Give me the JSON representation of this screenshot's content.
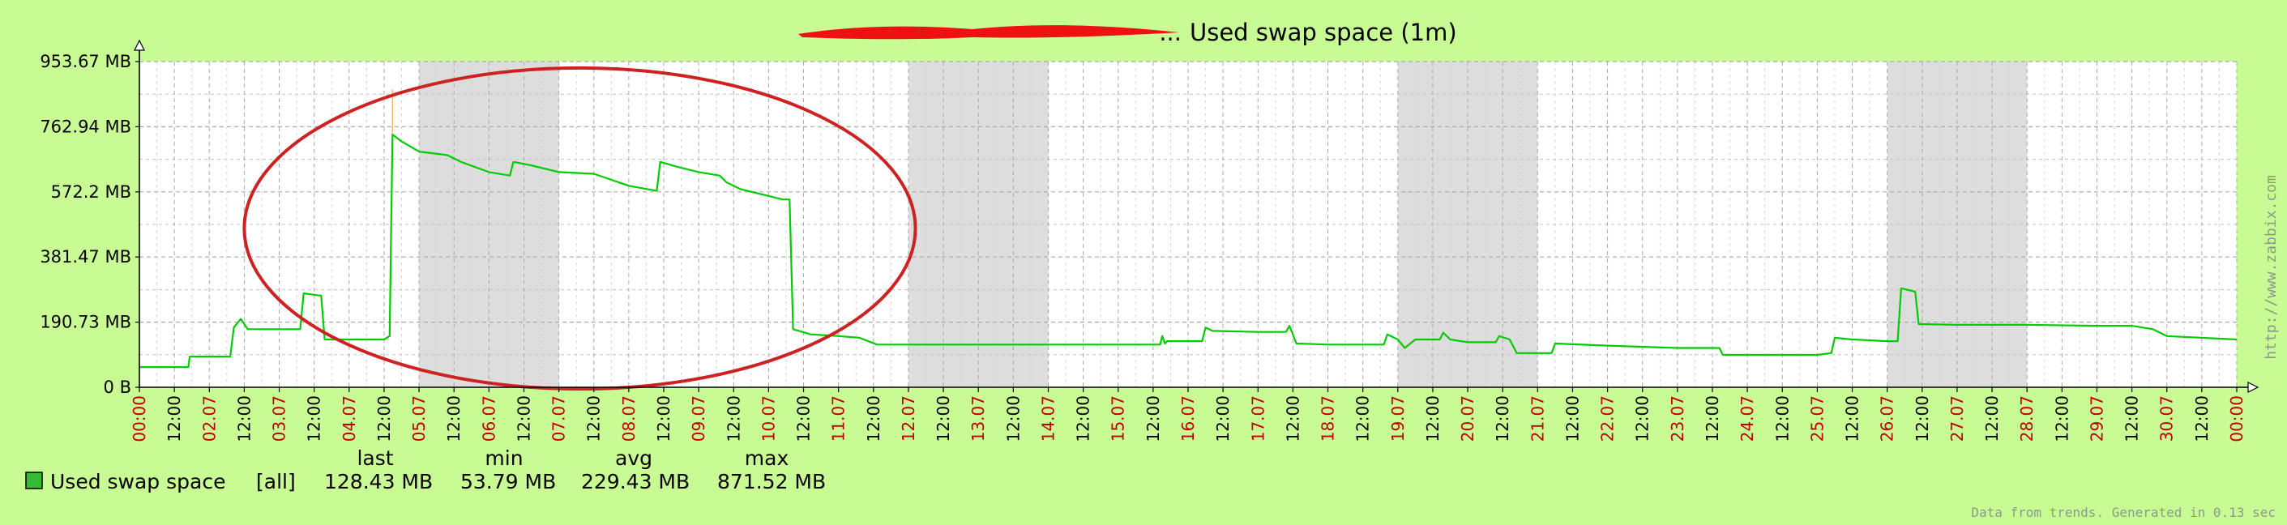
{
  "chart_data": {
    "type": "line",
    "title": "Used swap space  (1m)",
    "title_prefix": "...",
    "y_unit": "MB",
    "ylim": [
      0,
      953.67
    ],
    "y_ticks": [
      {
        "value": 0,
        "label": "0 B"
      },
      {
        "value": 190.73,
        "label": "190.73 MB"
      },
      {
        "value": 381.47,
        "label": "381.47 MB"
      },
      {
        "value": 572.2,
        "label": "572.2 MB"
      },
      {
        "value": 762.94,
        "label": "762.94 MB"
      },
      {
        "value": 953.67,
        "label": "953.67 MB"
      }
    ],
    "x_domain_days": [
      0,
      30
    ],
    "x_ticks": [
      {
        "day": 0,
        "label": "00:00",
        "major": true
      },
      {
        "day": 0.5,
        "label": "12:00",
        "major": false
      },
      {
        "day": 1,
        "label": "02.07",
        "major": true
      },
      {
        "day": 1.5,
        "label": "12:00",
        "major": false
      },
      {
        "day": 2,
        "label": "03.07",
        "major": true
      },
      {
        "day": 2.5,
        "label": "12:00",
        "major": false
      },
      {
        "day": 3,
        "label": "04.07",
        "major": true
      },
      {
        "day": 3.5,
        "label": "12:00",
        "major": false
      },
      {
        "day": 4,
        "label": "05.07",
        "major": true
      },
      {
        "day": 4.5,
        "label": "12:00",
        "major": false
      },
      {
        "day": 5,
        "label": "06.07",
        "major": true
      },
      {
        "day": 5.5,
        "label": "12:00",
        "major": false
      },
      {
        "day": 6,
        "label": "07.07",
        "major": true
      },
      {
        "day": 6.5,
        "label": "12:00",
        "major": false
      },
      {
        "day": 7,
        "label": "08.07",
        "major": true
      },
      {
        "day": 7.5,
        "label": "12:00",
        "major": false
      },
      {
        "day": 8,
        "label": "09.07",
        "major": true
      },
      {
        "day": 8.5,
        "label": "12:00",
        "major": false
      },
      {
        "day": 9,
        "label": "10.07",
        "major": true
      },
      {
        "day": 9.5,
        "label": "12:00",
        "major": false
      },
      {
        "day": 10,
        "label": "11.07",
        "major": true
      },
      {
        "day": 10.5,
        "label": "12:00",
        "major": false
      },
      {
        "day": 11,
        "label": "12.07",
        "major": true
      },
      {
        "day": 11.5,
        "label": "12:00",
        "major": false
      },
      {
        "day": 12,
        "label": "13.07",
        "major": true
      },
      {
        "day": 12.5,
        "label": "12:00",
        "major": false
      },
      {
        "day": 13,
        "label": "14.07",
        "major": true
      },
      {
        "day": 13.5,
        "label": "12:00",
        "major": false
      },
      {
        "day": 14,
        "label": "15.07",
        "major": true
      },
      {
        "day": 14.5,
        "label": "12:00",
        "major": false
      },
      {
        "day": 15,
        "label": "16.07",
        "major": true
      },
      {
        "day": 15.5,
        "label": "12:00",
        "major": false
      },
      {
        "day": 16,
        "label": "17.07",
        "major": true
      },
      {
        "day": 16.5,
        "label": "12:00",
        "major": false
      },
      {
        "day": 17,
        "label": "18.07",
        "major": true
      },
      {
        "day": 17.5,
        "label": "12:00",
        "major": false
      },
      {
        "day": 18,
        "label": "19.07",
        "major": true
      },
      {
        "day": 18.5,
        "label": "12:00",
        "major": false
      },
      {
        "day": 19,
        "label": "20.07",
        "major": true
      },
      {
        "day": 19.5,
        "label": "12:00",
        "major": false
      },
      {
        "day": 20,
        "label": "21.07",
        "major": true
      },
      {
        "day": 20.5,
        "label": "12:00",
        "major": false
      },
      {
        "day": 21,
        "label": "22.07",
        "major": true
      },
      {
        "day": 21.5,
        "label": "12:00",
        "major": false
      },
      {
        "day": 22,
        "label": "23.07",
        "major": true
      },
      {
        "day": 22.5,
        "label": "12:00",
        "major": false
      },
      {
        "day": 23,
        "label": "24.07",
        "major": true
      },
      {
        "day": 23.5,
        "label": "12:00",
        "major": false
      },
      {
        "day": 24,
        "label": "25.07",
        "major": true
      },
      {
        "day": 24.5,
        "label": "12:00",
        "major": false
      },
      {
        "day": 25,
        "label": "26.07",
        "major": true
      },
      {
        "day": 25.5,
        "label": "12:00",
        "major": false
      },
      {
        "day": 26,
        "label": "27.07",
        "major": true
      },
      {
        "day": 26.5,
        "label": "12:00",
        "major": false
      },
      {
        "day": 27,
        "label": "28.07",
        "major": true
      },
      {
        "day": 27.5,
        "label": "12:00",
        "major": false
      },
      {
        "day": 28,
        "label": "29.07",
        "major": true
      },
      {
        "day": 28.5,
        "label": "12:00",
        "major": false
      },
      {
        "day": 29,
        "label": "30.07",
        "major": true
      },
      {
        "day": 29.5,
        "label": "12:00",
        "major": false
      },
      {
        "day": 30,
        "label": "00:00",
        "major": true
      }
    ],
    "weekend_ranges_days": [
      [
        4,
        6
      ],
      [
        11,
        13
      ],
      [
        18,
        20
      ],
      [
        25,
        27
      ]
    ],
    "series": [
      {
        "name": "Used swap space",
        "scope": "[all]",
        "color": "#00cc00",
        "points": [
          [
            0,
            59
          ],
          [
            0.7,
            59
          ],
          [
            0.72,
            90
          ],
          [
            1.3,
            90
          ],
          [
            1.35,
            175
          ],
          [
            1.45,
            200
          ],
          [
            1.55,
            170
          ],
          [
            2.3,
            170
          ],
          [
            2.35,
            275
          ],
          [
            2.6,
            268
          ],
          [
            2.65,
            140
          ],
          [
            3.5,
            140
          ],
          [
            3.58,
            150
          ],
          [
            3.62,
            740
          ],
          [
            3.75,
            720
          ],
          [
            4,
            690
          ],
          [
            4.4,
            680
          ],
          [
            4.6,
            660
          ],
          [
            5,
            630
          ],
          [
            5.3,
            620
          ],
          [
            5.35,
            660
          ],
          [
            5.6,
            650
          ],
          [
            6,
            630
          ],
          [
            6.5,
            625
          ],
          [
            7,
            590
          ],
          [
            7.4,
            575
          ],
          [
            7.45,
            660
          ],
          [
            7.7,
            645
          ],
          [
            8,
            630
          ],
          [
            8.3,
            620
          ],
          [
            8.4,
            600
          ],
          [
            8.6,
            580
          ],
          [
            9,
            560
          ],
          [
            9.2,
            550
          ],
          [
            9.3,
            550
          ],
          [
            9.35,
            170
          ],
          [
            9.6,
            155
          ],
          [
            10,
            150
          ],
          [
            10.3,
            145
          ],
          [
            10.55,
            125
          ],
          [
            11,
            125
          ],
          [
            12,
            125
          ],
          [
            13,
            125
          ],
          [
            14,
            125
          ],
          [
            14.6,
            125
          ],
          [
            14.63,
            150
          ],
          [
            14.67,
            128
          ],
          [
            14.7,
            135
          ],
          [
            15.2,
            135
          ],
          [
            15.25,
            175
          ],
          [
            15.35,
            165
          ],
          [
            16,
            162
          ],
          [
            16.4,
            162
          ],
          [
            16.45,
            180
          ],
          [
            16.55,
            128
          ],
          [
            17,
            125
          ],
          [
            17.5,
            125
          ],
          [
            17.8,
            125
          ],
          [
            17.85,
            155
          ],
          [
            18,
            140
          ],
          [
            18.1,
            115
          ],
          [
            18.25,
            140
          ],
          [
            18.6,
            140
          ],
          [
            18.65,
            160
          ],
          [
            18.75,
            140
          ],
          [
            19,
            132
          ],
          [
            19.4,
            132
          ],
          [
            19.45,
            150
          ],
          [
            19.6,
            140
          ],
          [
            19.7,
            100
          ],
          [
            20.2,
            100
          ],
          [
            20.25,
            128
          ],
          [
            21,
            122
          ],
          [
            22,
            115
          ],
          [
            22.6,
            115
          ],
          [
            22.65,
            95
          ],
          [
            23,
            95
          ],
          [
            24,
            95
          ],
          [
            24.2,
            100
          ],
          [
            24.25,
            145
          ],
          [
            24.5,
            140
          ],
          [
            25,
            135
          ],
          [
            25.15,
            135
          ],
          [
            25.2,
            290
          ],
          [
            25.4,
            280
          ],
          [
            25.45,
            185
          ],
          [
            26,
            183
          ],
          [
            27,
            183
          ],
          [
            28,
            180
          ],
          [
            28.5,
            180
          ],
          [
            28.8,
            170
          ],
          [
            29,
            150
          ],
          [
            30,
            140
          ]
        ],
        "stats": {
          "last": "128.43 MB",
          "min": "53.79 MB",
          "avg": "229.43 MB",
          "max": "871.52 MB"
        }
      }
    ],
    "highlight_ellipse": {
      "cx_day": 6.3,
      "cy_mb": 465,
      "rx_days": 4.8,
      "ry_mb": 470,
      "color": "#cc2222"
    },
    "legend_placement": "bottom-left",
    "grid": true
  },
  "legend": {
    "headers": {
      "last": "last",
      "min": "min",
      "avg": "avg",
      "max": "max"
    },
    "item": {
      "name": "Used swap space",
      "scope": "[all]",
      "last": "128.43 MB",
      "min": "53.79 MB",
      "avg": "229.43 MB",
      "max": "871.52 MB",
      "color": "#33bb33"
    }
  },
  "footer": {
    "text": "Data from trends. Generated in 0.13 sec"
  },
  "watermark": {
    "text": "http://www.zabbix.com"
  },
  "colors": {
    "background": "#c8fb93",
    "plot": "#ffffff",
    "weekend": "#dddddd",
    "grid": "#aaaaaa",
    "line": "#00cc00",
    "weekday_label": "#bb0000",
    "axis": "#000000"
  }
}
